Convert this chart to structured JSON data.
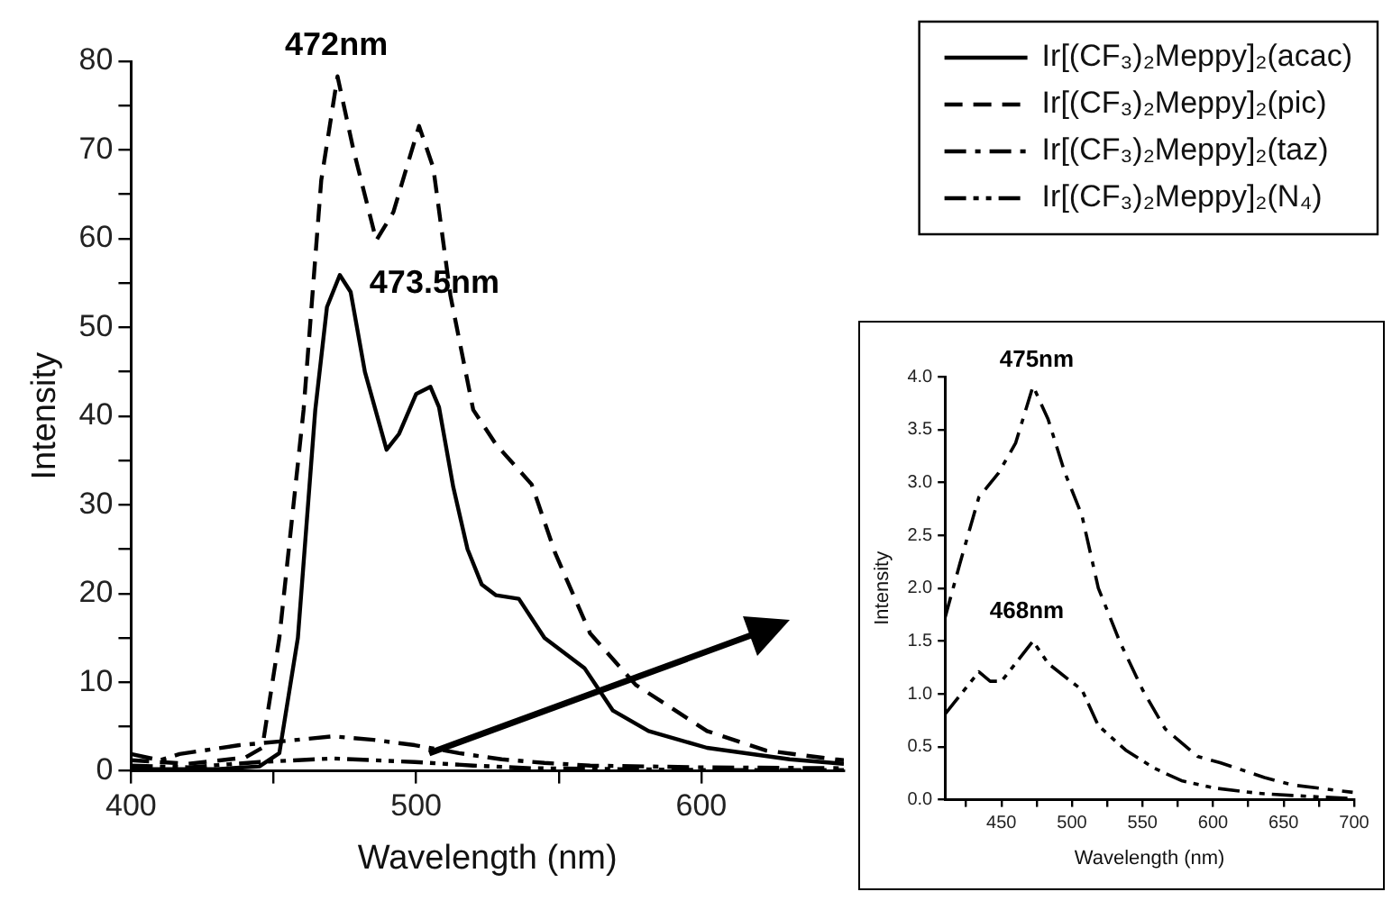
{
  "chart_data": [
    {
      "type": "line",
      "xlabel": "Wavelength (nm)",
      "ylabel": "Intensity",
      "legend": "top right",
      "grid": false,
      "marker": "none",
      "xlim": [
        400,
        650
      ],
      "xticks": [
        400,
        {
          "value": 450,
          "label": null
        },
        500,
        {
          "value": 550,
          "label": null
        },
        600
      ],
      "ylim": [
        0,
        80
      ],
      "yticks": [
        0,
        {
          "value": 5,
          "label": null
        },
        10,
        {
          "value": 15,
          "label": null
        },
        20,
        {
          "value": 25,
          "label": null
        },
        30,
        {
          "value": 35,
          "label": null
        },
        40,
        {
          "value": 45,
          "label": null
        },
        50,
        {
          "value": 55,
          "label": null
        },
        60,
        {
          "value": 65,
          "label": null
        },
        70,
        {
          "value": 75,
          "label": null
        },
        80
      ],
      "annotations": [
        {
          "text": "472nm",
          "x": 472,
          "y": 78.3
        },
        {
          "text": "473.5nm",
          "x": 473.5,
          "y": 55.9
        }
      ],
      "series": [
        {
          "name": "Ir[(CF₃)₂Meppy]₂(acac)",
          "color": "#000000",
          "line_style": "solid",
          "x": [
            400,
            430,
            445,
            452,
            458.5,
            464.6,
            468.7,
            473.2,
            477,
            482,
            489.6,
            494,
            500,
            505,
            508,
            513,
            518,
            523,
            528,
            536,
            545,
            559,
            569,
            581.5,
            602,
            631,
            650
          ],
          "values": [
            0.2,
            0.2,
            0.5,
            2,
            15,
            40.7,
            52.3,
            55.9,
            54,
            45,
            36.2,
            38,
            42.5,
            43.3,
            41,
            32,
            25,
            21,
            19.8,
            19.4,
            15,
            11.6,
            6.8,
            4.5,
            2.6,
            1.3,
            0.8
          ]
        },
        {
          "name": "Ir[(CF₃)₂Meppy]₂(pic)",
          "color": "#000000",
          "line_style": "dashed",
          "x": [
            400,
            420,
            440,
            446,
            452,
            460.5,
            466.7,
            472.4,
            478,
            486,
            492,
            501,
            506,
            512,
            520,
            528,
            540.5,
            548.7,
            561,
            577,
            602,
            622.6,
            647,
            650
          ],
          "values": [
            1.2,
            0.8,
            1.5,
            2.6,
            15,
            40.7,
            66.6,
            78.3,
            70,
            59.8,
            63,
            72.7,
            68,
            53.6,
            40.7,
            36.8,
            32.3,
            24.6,
            15.5,
            9.7,
            4.5,
            2.3,
            1.3,
            1.2
          ]
        },
        {
          "name": "Ir[(CF₃)₂Meppy]₂(taz)",
          "color": "#000000",
          "line_style": "dashdot",
          "x": [
            400,
            410,
            417,
            438,
            455,
            470.8,
            485,
            499.5,
            515,
            530,
            545,
            561,
            600,
            650
          ],
          "values": [
            1.9,
            1.2,
            1.9,
            2.9,
            3.4,
            3.9,
            3.5,
            2.9,
            2,
            1.3,
            0.9,
            0.6,
            0.4,
            0.3
          ]
        },
        {
          "name": "Ir[(CF₃)₂Meppy]₂(N₄)",
          "color": "#000000",
          "line_style": "dashdotdot",
          "x": [
            400,
            420,
            445,
            470.8,
            485,
            499.5,
            520,
            540.5,
            570,
            600,
            650
          ],
          "values": [
            0.6,
            0.4,
            1,
            1.4,
            1.2,
            1,
            0.6,
            0.3,
            0.2,
            0.1,
            0.1
          ]
        }
      ]
    },
    {
      "type": "line",
      "xlabel": "Wavelength (nm)",
      "ylabel": "Intensity",
      "grid": false,
      "marker": "none",
      "xlim": [
        410,
        700
      ],
      "xticks": [
        {
          "value": 425,
          "label": null
        },
        450,
        {
          "value": 475,
          "label": null
        },
        500,
        {
          "value": 525,
          "label": null
        },
        550,
        {
          "value": 575,
          "label": null
        },
        600,
        {
          "value": 625,
          "label": null
        },
        650,
        {
          "value": 675,
          "label": null
        },
        700
      ],
      "ylim": [
        0,
        4
      ],
      "yticks": [
        {
          "value": 0,
          "label": "0.0"
        },
        0.5,
        {
          "value": 1,
          "label": "1.0"
        },
        1.5,
        {
          "value": 2,
          "label": "2.0"
        },
        2.5,
        {
          "value": 3,
          "label": "3.0"
        },
        3.5,
        {
          "value": 4,
          "label": "4.0"
        }
      ],
      "annotations": [
        {
          "text": "475nm",
          "x": 475,
          "y": 3.91
        },
        {
          "text": "468nm",
          "x": 468,
          "y": 1.5
        }
      ],
      "series": [
        {
          "color": "#000000",
          "line_style": "dashdot",
          "x": [
            410,
            420.5,
            434,
            448,
            460,
            472.4,
            483,
            495,
            507,
            518.7,
            534,
            550,
            566,
            589,
            605,
            636.5,
            656,
            699
          ],
          "values": [
            1.72,
            2.23,
            2.86,
            3.09,
            3.37,
            3.91,
            3.6,
            3.09,
            2.69,
            2,
            1.49,
            1.04,
            0.67,
            0.41,
            0.35,
            0.21,
            0.14,
            0.07
          ]
        },
        {
          "color": "#000000",
          "line_style": "dashdotdot",
          "x": [
            410,
            416.6,
            434,
            442,
            450,
            461.8,
            472.4,
            483,
            499,
            507,
            518.7,
            538,
            558,
            577.6,
            601,
            632.6,
            656,
            699
          ],
          "values": [
            0.81,
            0.92,
            1.21,
            1.12,
            1.12,
            1.32,
            1.5,
            1.29,
            1.12,
            1.04,
            0.7,
            0.47,
            0.3,
            0.18,
            0.11,
            0.06,
            0.04,
            0.01
          ]
        }
      ]
    }
  ]
}
